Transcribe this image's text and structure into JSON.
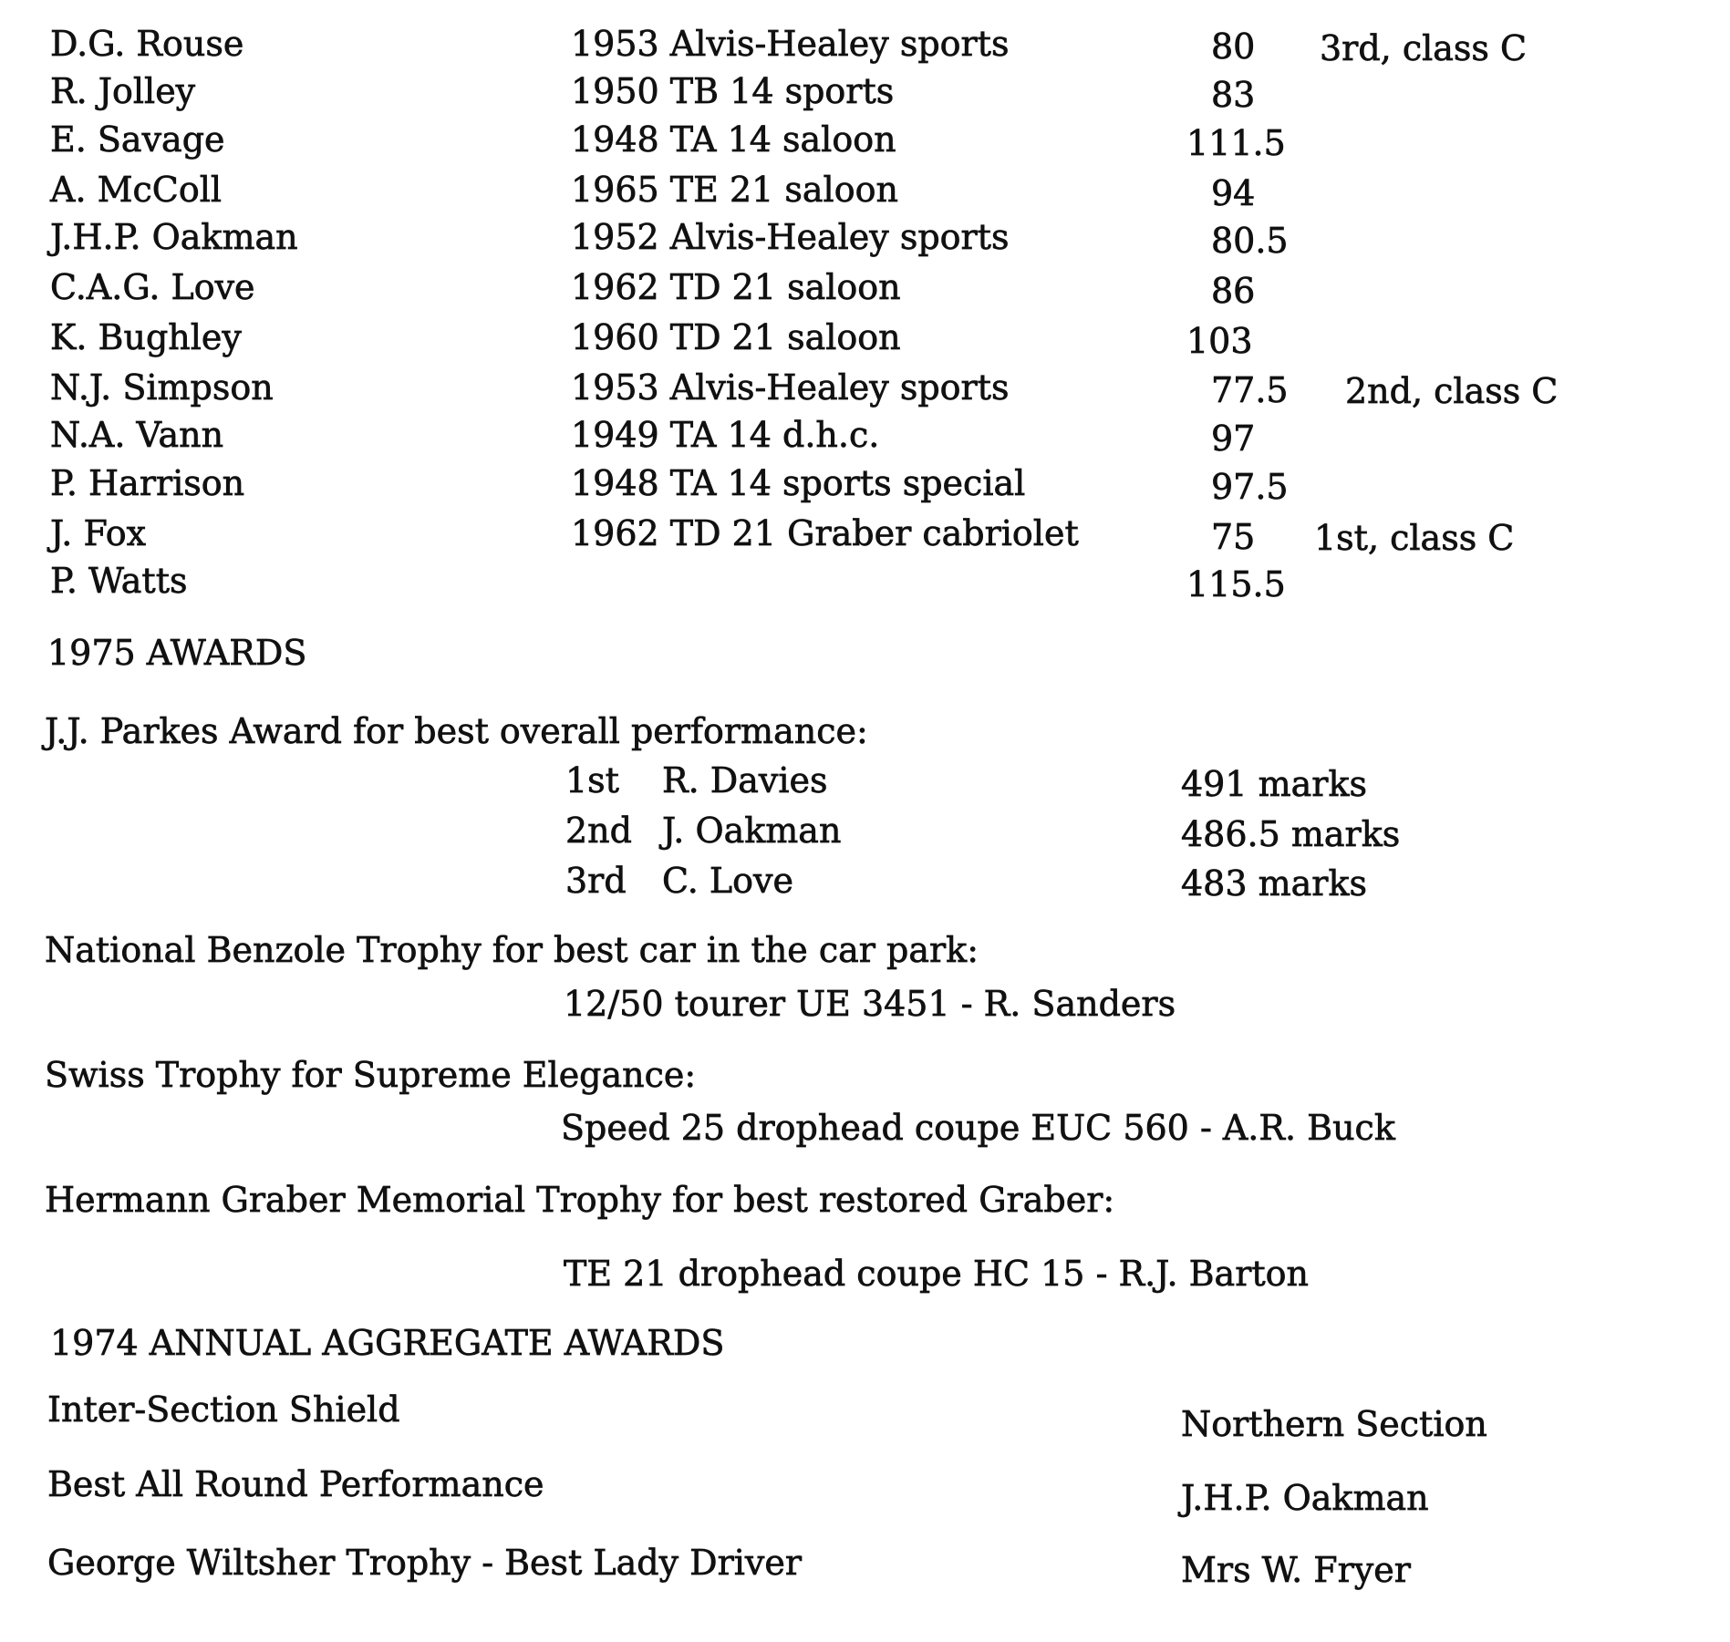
{
  "entries": [
    {
      "name": "D.G. Rouse",
      "car": "1953 Alvis-Healey sports",
      "score": "80",
      "result": "3rd, class C"
    },
    {
      "name": "R. Jolley",
      "car": "1950 TB 14 sports",
      "score": "83",
      "result": ""
    },
    {
      "name": "E. Savage",
      "car": "1948 TA 14 saloon",
      "score": "111.5",
      "result": ""
    },
    {
      "name": "A. McColl",
      "car": "1965 TE 21 saloon",
      "score": "94",
      "result": ""
    },
    {
      "name": "J.H.P. Oakman",
      "car": "1952 Alvis-Healey sports",
      "score": "80.5",
      "result": ""
    },
    {
      "name": "C.A.G. Love",
      "car": "1962 TD 21 saloon",
      "score": "86",
      "result": ""
    },
    {
      "name": "K. Bughley",
      "car": "1960 TD 21 saloon",
      "score": "103",
      "result": ""
    },
    {
      "name": "N.J. Simpson",
      "car": "1953 Alvis-Healey sports",
      "score": "77.5",
      "result": "2nd, class C"
    },
    {
      "name": "N.A. Vann",
      "car": "1949 TA 14 d.h.c.",
      "score": "97",
      "result": ""
    },
    {
      "name": "P. Harrison",
      "car": "1948 TA 14 sports special",
      "score": "97.5",
      "result": ""
    },
    {
      "name": "J. Fox",
      "car": "1962 TD 21 Graber cabriolet",
      "score": "75",
      "result": "1st, class C"
    },
    {
      "name": "P. Watts",
      "car": "",
      "score": "115.5",
      "result": ""
    }
  ],
  "awards_1975": {
    "heading": "1975 AWARDS",
    "parkes": {
      "title": "J.J. Parkes Award for best overall performance:",
      "places": [
        {
          "place": "1st",
          "name": "R. Davies",
          "marks": "491 marks"
        },
        {
          "place": "2nd",
          "name": "J. Oakman",
          "marks": "486.5 marks"
        },
        {
          "place": "3rd",
          "name": "C. Love",
          "marks": "483 marks"
        }
      ]
    },
    "benzole": {
      "title": "National Benzole Trophy for best car in the car park:",
      "winner": "12/50 tourer UE 3451 - R. Sanders"
    },
    "swiss": {
      "title": "Swiss Trophy for Supreme Elegance:",
      "winner": "Speed 25 drophead coupe EUC 560 - A.R. Buck"
    },
    "graber": {
      "title": "Hermann Graber Memorial Trophy for best restored Graber:",
      "winner": "TE 21 drophead coupe HC 15 - R.J. Barton"
    }
  },
  "aggregate_1974": {
    "heading": "1974 ANNUAL AGGREGATE AWARDS",
    "items": [
      {
        "award": "Inter-Section Shield",
        "winner": "Northern Section"
      },
      {
        "award": "Best All Round Performance",
        "winner": "J.H.P. Oakman"
      },
      {
        "award": "George Wiltsher Trophy - Best Lady Driver",
        "winner": "Mrs W. Fryer"
      }
    ]
  }
}
